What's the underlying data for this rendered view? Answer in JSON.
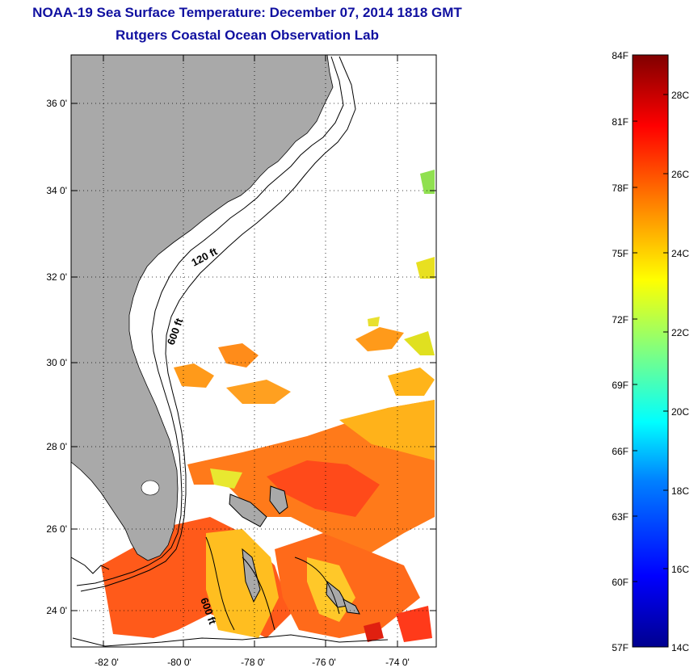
{
  "title": "NOAA-19 Sea Surface Temperature:  December 07, 2014 1818 GMT",
  "subtitle": "Rutgers Coastal Ocean Observation Lab",
  "map": {
    "lat_labels": [
      "36 0'",
      "34 0'",
      "32 0'",
      "30 0'",
      "28 0'",
      "26 0'",
      "24 0'"
    ],
    "lon_labels": [
      "-82 0'",
      "-80 0'",
      "-78 0'",
      "-76 0'",
      "-74 0'"
    ],
    "contours": [
      "120 ft",
      "600 ft",
      "600 ft"
    ],
    "land_color": "#a9a9a9",
    "grid": "dotted"
  },
  "colorbar": {
    "f_labels": [
      "84F",
      "81F",
      "78F",
      "75F",
      "72F",
      "69F",
      "66F",
      "63F",
      "60F",
      "57F"
    ],
    "c_labels": [
      "28C",
      "26C",
      "24C",
      "22C",
      "20C",
      "18C",
      "16C",
      "14C"
    ],
    "colors": [
      "#00008f",
      "#0000ff",
      "#0080ff",
      "#00ffff",
      "#80ff80",
      "#ffff00",
      "#ff8000",
      "#ff0000",
      "#800000"
    ]
  }
}
